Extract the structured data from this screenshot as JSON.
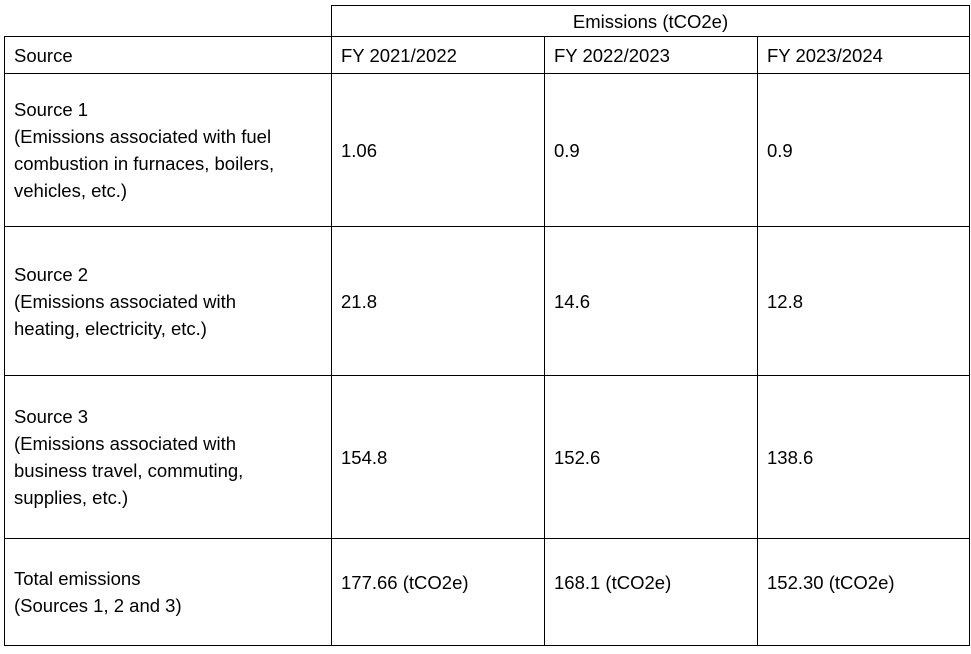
{
  "table": {
    "group_header": "Emissions (tCO2e)",
    "columns": [
      "Source",
      "FY 2021/2022",
      "FY 2022/2023",
      "FY 2023/2024"
    ],
    "rows": [
      {
        "title": "Source 1",
        "desc_lines": [
          "(Emissions associated with fuel",
          "combustion in furnaces, boilers,",
          "vehicles, etc.)"
        ],
        "values": [
          "1.06",
          "0.9",
          "0.9"
        ]
      },
      {
        "title": "Source 2",
        "desc_lines": [
          "(Emissions associated with",
          "heating, electricity, etc.)"
        ],
        "values": [
          "21.8",
          "14.6",
          "12.8"
        ]
      },
      {
        "title": "Source 3",
        "desc_lines": [
          "(Emissions associated with",
          "business travel, commuting,",
          "supplies, etc.)"
        ],
        "values": [
          "154.8",
          "152.6",
          "138.6"
        ]
      }
    ],
    "total": {
      "title": "Total emissions",
      "desc": "(Sources 1, 2 and 3)",
      "values": [
        "177.66 (tCO2e)",
        "168.1 (tCO2e)",
        "152.30 (tCO2e)"
      ]
    }
  }
}
